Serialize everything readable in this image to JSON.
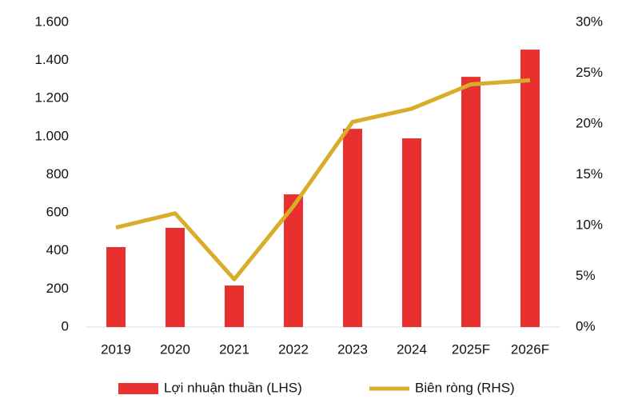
{
  "chart_data": {
    "type": "bar_line",
    "categories": [
      "2019",
      "2020",
      "2021",
      "2022",
      "2023",
      "2024",
      "2025F",
      "2026F"
    ],
    "series": [
      {
        "name": "Lợi nhuận thuần (LHS)",
        "type": "bar",
        "color": "#e8312f",
        "values": [
          420,
          521,
          218,
          697,
          1041,
          991,
          1314,
          1457
        ]
      },
      {
        "name": "Biên ròng (RHS)",
        "type": "line",
        "axis": "y2",
        "color": "#d9ad29",
        "values": [
          9.8,
          11.2,
          4.7,
          11.9,
          20.2,
          21.5,
          23.9,
          24.3
        ]
      }
    ],
    "ylim": [
      0,
      1600
    ],
    "yticks": [
      0,
      200,
      400,
      600,
      800,
      {
        "value": 1000,
        "label": "1.000"
      },
      {
        "value": 1200,
        "label": "1.200"
      },
      {
        "value": 1400,
        "label": "1.400"
      },
      {
        "value": 1600,
        "label": "1.600"
      }
    ],
    "y2lim": [
      0,
      30
    ],
    "y2ticks": [
      {
        "value": 0,
        "label": "0%"
      },
      {
        "value": 5,
        "label": "5%"
      },
      {
        "value": 10,
        "label": "10%"
      },
      {
        "value": 15,
        "label": "15%"
      },
      {
        "value": 20,
        "label": "20%"
      },
      {
        "value": 25,
        "label": "25%"
      },
      {
        "value": 30,
        "label": "30%"
      }
    ],
    "legend": "bottom"
  }
}
